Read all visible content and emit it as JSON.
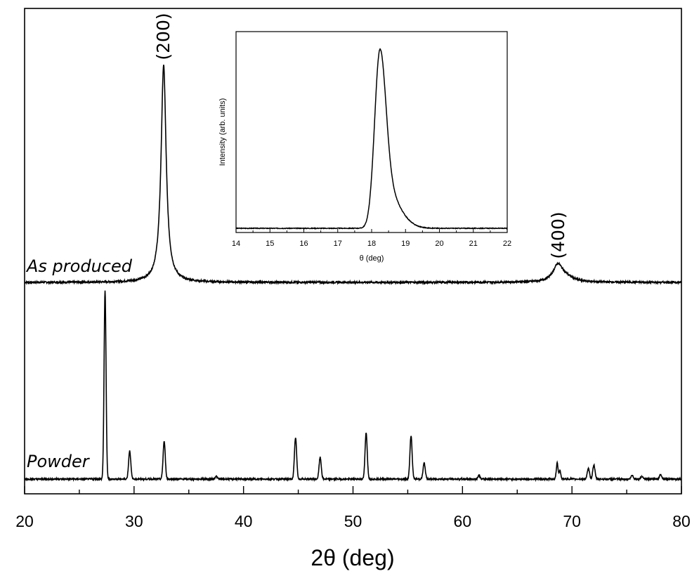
{
  "chart_data": [
    {
      "type": "line",
      "title": "",
      "xlabel": "2θ (deg)",
      "ylabel": "",
      "xlim": [
        20,
        80
      ],
      "xticks": [
        "20",
        "30",
        "40",
        "50",
        "60",
        "70",
        "80"
      ],
      "grid": false,
      "legend": "none",
      "series": [
        {
          "name": "As produced",
          "baseline": 0.0,
          "peaks": [
            {
              "x": 32.7,
              "height": 1.0,
              "width": 0.28
            },
            {
              "x": 68.7,
              "height": 0.07,
              "width": 0.5
            },
            {
              "x": 69.3,
              "height": 0.025,
              "width": 0.9
            }
          ]
        },
        {
          "name": "Powder",
          "baseline": 0.0,
          "peaks": [
            {
              "x": 27.35,
              "height": 1.0,
              "width": 0.09
            },
            {
              "x": 29.6,
              "height": 0.15,
              "width": 0.1
            },
            {
              "x": 32.75,
              "height": 0.2,
              "width": 0.1
            },
            {
              "x": 37.5,
              "height": 0.015,
              "width": 0.1
            },
            {
              "x": 44.75,
              "height": 0.22,
              "width": 0.1
            },
            {
              "x": 47.0,
              "height": 0.115,
              "width": 0.1
            },
            {
              "x": 51.2,
              "height": 0.245,
              "width": 0.1
            },
            {
              "x": 55.3,
              "height": 0.23,
              "width": 0.1
            },
            {
              "x": 56.5,
              "height": 0.085,
              "width": 0.1
            },
            {
              "x": 61.5,
              "height": 0.02,
              "width": 0.1
            },
            {
              "x": 68.65,
              "height": 0.085,
              "width": 0.08
            },
            {
              "x": 68.9,
              "height": 0.045,
              "width": 0.08
            },
            {
              "x": 71.5,
              "height": 0.055,
              "width": 0.1
            },
            {
              "x": 72.0,
              "height": 0.075,
              "width": 0.1
            },
            {
              "x": 75.5,
              "height": 0.02,
              "width": 0.1
            },
            {
              "x": 76.4,
              "height": 0.015,
              "width": 0.1
            },
            {
              "x": 78.1,
              "height": 0.025,
              "width": 0.1
            }
          ]
        }
      ],
      "annotations": [
        {
          "text": "(200)",
          "x": 32.7
        },
        {
          "text": "(400)",
          "x": 68.7
        }
      ]
    },
    {
      "type": "line",
      "title": "",
      "xlabel": "θ (deg)",
      "ylabel": "Intensity (arb. units)",
      "xlim": [
        14,
        22
      ],
      "xticks": [
        "14",
        "15",
        "16",
        "17",
        "18",
        "19",
        "20",
        "21",
        "22"
      ],
      "grid": false,
      "legend": "none",
      "series": [
        {
          "name": "",
          "peak_x": 18.25,
          "peak_height": 1.0,
          "width_left": 0.16,
          "width_right_narrow": 0.17,
          "width_right_tail": 0.45
        }
      ]
    }
  ]
}
